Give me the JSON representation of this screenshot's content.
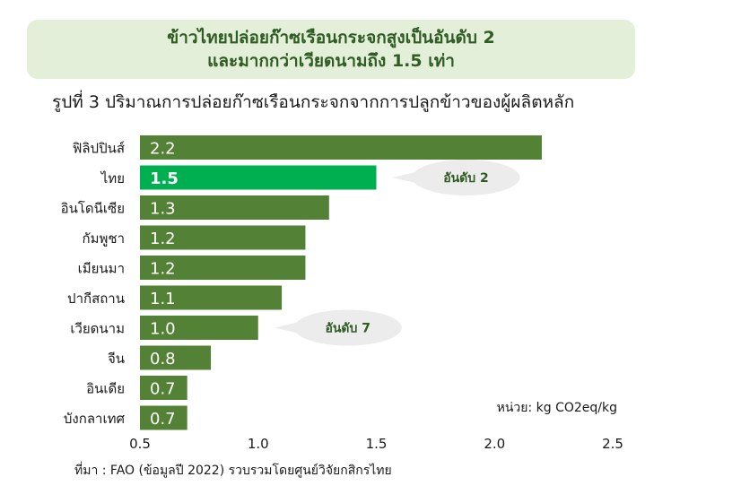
{
  "header": {
    "line1": "ข้าวไทยปล่อยก๊าซเรือนกระจกสูงเป็นอันดับ 2",
    "line2": "และมากกว่าเวียดนามถึง 1.5 เท่า"
  },
  "subtitle": "รูปที่ 3 ปริมาณการปล่อยก๊าซเรือนกระจกจากการปลูกข้าวของผู้ผลิตหลัก",
  "source": "ที่มา : FAO (ข้อมูลปี 2022) รวบรวมโดยศูนย์วิจัยกสิกรไทย",
  "colors": {
    "bar": "#538135",
    "highlight": "#00b050",
    "header_bg": "#e3efd9",
    "header_text": "#2e5c22",
    "callout_bg": "#ececec",
    "callout_text": "#2e5c22"
  },
  "chart_data": {
    "type": "bar",
    "orientation": "horizontal",
    "categories": [
      "ฟิลิปปินส์",
      "ไทย",
      "อินโดนีเซีย",
      "กัมพูชา",
      "เมียนมา",
      "ปากีสถาน",
      "เวียดนาม",
      "จีน",
      "อินเดีย",
      "บังกลาเทศ"
    ],
    "values": [
      2.2,
      1.5,
      1.3,
      1.2,
      1.2,
      1.1,
      1.0,
      0.8,
      0.7,
      0.7
    ],
    "value_labels": [
      "2.2",
      "1.5",
      "1.3",
      "1.2",
      "1.2",
      "1.1",
      "1.0",
      "0.8",
      "0.7",
      "0.7"
    ],
    "xlim": [
      0.5,
      2.5
    ],
    "x_ticks": [
      0.5,
      1.0,
      1.5,
      2.0,
      2.5
    ],
    "x_tick_labels": [
      "0.5",
      "1.0",
      "1.5",
      "2.0",
      "2.5"
    ],
    "unit_label": "หน่วย: kg CO2eq/kg",
    "highlight_index": 1,
    "annotations": [
      {
        "category_index": 1,
        "text": "อันดับ 2"
      },
      {
        "category_index": 6,
        "text": "อันดับ 7"
      }
    ],
    "grid": false,
    "legend": "none"
  }
}
